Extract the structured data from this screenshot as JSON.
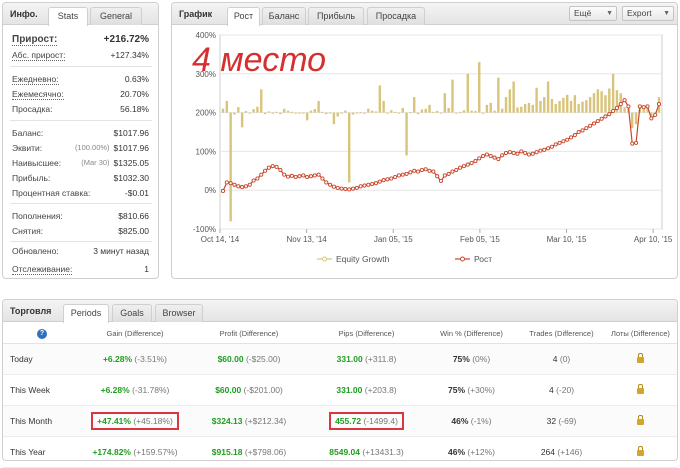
{
  "info_panel": {
    "title": "Инфо.",
    "tabs": [
      "Stats",
      "General"
    ],
    "active_tab": "Stats",
    "rows": [
      {
        "label": "Прирост:",
        "value": "+216.72%"
      },
      {
        "label": "Абс. прирост:",
        "value": "+127.34%"
      },
      {
        "label": "Ежедневно:",
        "value": "0.63%"
      },
      {
        "label": "Ежемесячно:",
        "value": "20.70%"
      },
      {
        "label": "Просадка:",
        "value": "56.18%"
      },
      {
        "label": "Баланс:",
        "value": "$1017.96"
      },
      {
        "label": "Эквити:",
        "note": "(100.00%)",
        "value": "$1017.96"
      },
      {
        "label": "Наивысшее:",
        "note": "(Mar 30)",
        "value": "$1325.05"
      },
      {
        "label": "Прибыль:",
        "value": "$1032.30"
      },
      {
        "label": "Процентная ставка:",
        "value": "-$0.01"
      },
      {
        "label": "Пополнения:",
        "value": "$810.66"
      },
      {
        "label": "Снятия:",
        "value": "$825.00"
      },
      {
        "label": "Обновлено:",
        "value": "3 минут назад"
      },
      {
        "label": "Отслеживание:",
        "value": "1"
      }
    ]
  },
  "chart_panel": {
    "title": "График",
    "tabs": [
      "Рост",
      "Баланс",
      "Прибыль",
      "Просадка"
    ],
    "active_tab": "Рост",
    "more_label": "Ещё",
    "export_label": "Export",
    "overlay_text": "4 место"
  },
  "chart_data": {
    "type": "line",
    "y_ticks": [
      "400%",
      "300%",
      "200%",
      "100%",
      "0%",
      "-100%"
    ],
    "ylim": [
      -100,
      400
    ],
    "x_ticks": [
      "Oct 14, '14",
      "Nov 13, '14",
      "Jan 05, '15",
      "Feb 05, '15",
      "Mar 10, '15",
      "Apr 10, '15"
    ],
    "legend": [
      "Equity Growth",
      "Рост"
    ],
    "series": [
      {
        "name": "Рост",
        "color": "#c8462b",
        "values": [
          -2,
          20,
          18,
          14,
          10,
          8,
          10,
          14,
          25,
          30,
          40,
          50,
          58,
          62,
          60,
          52,
          40,
          35,
          37,
          34,
          36,
          38,
          34,
          36,
          38,
          40,
          30,
          20,
          14,
          9,
          6,
          4,
          3,
          2,
          4,
          6,
          10,
          12,
          14,
          16,
          18,
          22,
          26,
          28,
          30,
          34,
          38,
          40,
          42,
          46,
          50,
          48,
          52,
          54,
          50,
          48,
          36,
          24,
          38,
          42,
          48,
          52,
          58,
          62,
          66,
          70,
          75,
          82,
          88,
          92,
          88,
          84,
          80,
          90,
          96,
          98,
          96,
          94,
          100,
          96,
          92,
          94,
          98,
          102,
          104,
          108,
          112,
          118,
          122,
          126,
          130,
          136,
          142,
          150,
          154,
          160,
          166,
          172,
          178,
          184,
          190,
          196,
          204,
          212,
          222,
          232,
          216,
          120,
          122,
          216,
          214,
          216,
          185,
          194,
          222
        ]
      },
      {
        "name": "Equity Growth",
        "color": "#d8c47a",
        "values": [
          210,
          230,
          -80,
          195,
          214,
          162,
          204,
          200,
          209,
          215,
          260,
          196,
          203,
          197,
          202,
          196,
          210,
          205,
          202,
          200,
          200,
          199,
          180,
          205,
          209,
          230,
          202,
          196,
          200,
          170,
          190,
          198,
          205,
          20,
          195,
          199,
          201,
          197,
          210,
          205,
          203,
          270,
          230,
          198,
          206,
          202,
          200,
          212,
          90,
          201,
          240,
          196,
          208,
          210,
          220,
          202,
          204,
          199,
          250,
          212,
          285,
          198,
          202,
          206,
          300,
          205,
          204,
          330,
          200,
          220,
          225,
          205,
          290,
          210,
          240,
          260,
          280,
          213,
          215,
          222,
          225,
          220,
          264,
          230,
          240,
          280,
          235,
          222,
          230,
          238,
          246,
          230,
          245,
          222,
          228,
          232,
          240,
          250,
          260,
          255,
          245,
          262,
          300,
          258,
          250,
          214,
          210,
          160,
          170,
          212,
          214,
          216,
          190,
          200,
          240
        ]
      }
    ]
  },
  "trading_panel": {
    "title": "Торговля",
    "tabs": [
      "Periods",
      "Goals",
      "Browser"
    ],
    "active_tab": "Periods",
    "help_icon": "?",
    "headers": [
      "Gain (Difference)",
      "Profit (Difference)",
      "Pips (Difference)",
      "Win % (Difference)",
      "Trades (Difference)",
      "Лоты (Difference)"
    ],
    "rows": [
      {
        "period": "Today",
        "gain": "+6.28%",
        "gain_diff": "(-3.51%)",
        "profit": "$60.00",
        "profit_diff": "(-$25.00)",
        "pips": "331.00",
        "pips_diff": "(+311.8)",
        "win": "75%",
        "win_diff": "(0%)",
        "trades": "4",
        "trades_diff": "(0)"
      },
      {
        "period": "This Week",
        "gain": "+6.28%",
        "gain_diff": "(-31.78%)",
        "profit": "$60.00",
        "profit_diff": "(-$201.00)",
        "pips": "331.00",
        "pips_diff": "(+203.8)",
        "win": "75%",
        "win_diff": "(+30%)",
        "trades": "4",
        "trades_diff": "(-20)"
      },
      {
        "period": "This Month",
        "gain": "+47.41%",
        "gain_diff": "(+45.18%)",
        "profit": "$324.13",
        "profit_diff": "(+$212.34)",
        "pips": "455.72",
        "pips_diff": "(-1499.4)",
        "win": "46%",
        "win_diff": "(-1%)",
        "trades": "32",
        "trades_diff": "(-69)"
      },
      {
        "period": "This Year",
        "gain": "+174.82%",
        "gain_diff": "(+159.57%)",
        "profit": "$915.18",
        "profit_diff": "(+$798.06)",
        "pips": "8549.04",
        "pips_diff": "(+13431.3)",
        "win": "46%",
        "win_diff": "(+12%)",
        "trades": "264",
        "trades_diff": "(+146)"
      }
    ]
  }
}
